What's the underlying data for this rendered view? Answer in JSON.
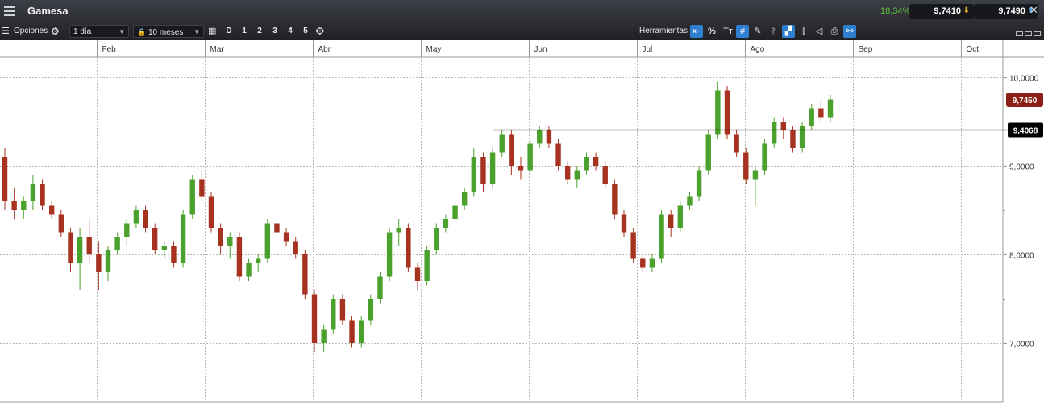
{
  "title_bar": {
    "title": "Gamesa",
    "change": "18,34%",
    "sell_quote": "9,7410",
    "buy_quote": "9,7490",
    "icons": [
      "menu-icon",
      "arrow-down-icon",
      "arrow-up-icon",
      "close-icon"
    ]
  },
  "toolbar": {
    "options_label": "Opciones",
    "interval": "1 día",
    "range": "10 meses",
    "quick_periods": [
      "D",
      "1",
      "2",
      "3",
      "4",
      "5"
    ],
    "tools_label": "Herramientas",
    "percent_label": "%",
    "text_tool_label": "Tт"
  },
  "colors": {
    "up": "#4aa12c",
    "down": "#a83220",
    "last_price_tag": "#8b1f14",
    "level_tag": "#000000",
    "accent": "#2f7fd0"
  },
  "chart_data": {
    "type": "candlestick",
    "instrument": "Gamesa",
    "x_axis": {
      "month_labels": [
        "Feb",
        "Mar",
        "Abr",
        "May",
        "Jun",
        "Jul",
        "Ago",
        "Sep",
        "Oct"
      ]
    },
    "y_axis": {
      "tick_labels": [
        "10,0000",
        "9,0000",
        "8,0000",
        "7,0000"
      ],
      "ticks": [
        10,
        9,
        8,
        7
      ],
      "range": [
        6.4,
        10.2
      ],
      "position": "right"
    },
    "grid": true,
    "last_price": 9.745,
    "last_price_label": "9,7450",
    "horizontal_level": 9.4068,
    "horizontal_level_label": "9,4068",
    "candles": [
      [
        9.1,
        9.2,
        8.5,
        8.6
      ],
      [
        8.6,
        8.75,
        8.4,
        8.5
      ],
      [
        8.5,
        8.65,
        8.4,
        8.6
      ],
      [
        8.6,
        8.9,
        8.5,
        8.8
      ],
      [
        8.8,
        8.85,
        8.5,
        8.55
      ],
      [
        8.55,
        8.6,
        8.4,
        8.45
      ],
      [
        8.45,
        8.5,
        8.2,
        8.25
      ],
      [
        8.25,
        8.3,
        7.8,
        7.9
      ],
      [
        7.9,
        8.3,
        7.6,
        8.2
      ],
      [
        8.2,
        8.4,
        7.9,
        8.0
      ],
      [
        8.0,
        8.15,
        7.6,
        7.8
      ],
      [
        7.8,
        8.1,
        7.7,
        8.05
      ],
      [
        8.05,
        8.25,
        8.0,
        8.2
      ],
      [
        8.2,
        8.4,
        8.1,
        8.35
      ],
      [
        8.35,
        8.55,
        8.3,
        8.5
      ],
      [
        8.5,
        8.55,
        8.25,
        8.3
      ],
      [
        8.3,
        8.35,
        8.0,
        8.05
      ],
      [
        8.05,
        8.15,
        7.95,
        8.1
      ],
      [
        8.1,
        8.15,
        7.85,
        7.9
      ],
      [
        7.9,
        8.5,
        7.85,
        8.45
      ],
      [
        8.45,
        8.9,
        8.4,
        8.85
      ],
      [
        8.85,
        8.95,
        8.6,
        8.65
      ],
      [
        8.65,
        8.7,
        8.25,
        8.3
      ],
      [
        8.3,
        8.35,
        8.0,
        8.1
      ],
      [
        8.1,
        8.25,
        7.95,
        8.2
      ],
      [
        8.2,
        8.25,
        7.7,
        7.75
      ],
      [
        7.75,
        7.95,
        7.7,
        7.9
      ],
      [
        7.9,
        8.0,
        7.8,
        7.95
      ],
      [
        7.95,
        8.4,
        7.9,
        8.35
      ],
      [
        8.35,
        8.4,
        8.2,
        8.25
      ],
      [
        8.25,
        8.3,
        8.1,
        8.15
      ],
      [
        8.15,
        8.2,
        7.95,
        8.0
      ],
      [
        8.0,
        8.05,
        7.5,
        7.55
      ],
      [
        7.55,
        7.6,
        6.9,
        7.0
      ],
      [
        7.0,
        7.2,
        6.9,
        7.15
      ],
      [
        7.15,
        7.55,
        7.1,
        7.5
      ],
      [
        7.5,
        7.55,
        7.2,
        7.25
      ],
      [
        7.25,
        7.3,
        6.95,
        7.0
      ],
      [
        7.0,
        7.3,
        6.95,
        7.25
      ],
      [
        7.25,
        7.55,
        7.2,
        7.5
      ],
      [
        7.5,
        7.8,
        7.45,
        7.75
      ],
      [
        7.75,
        8.3,
        7.7,
        8.25
      ],
      [
        8.25,
        8.4,
        8.1,
        8.3
      ],
      [
        8.3,
        8.35,
        7.8,
        7.85
      ],
      [
        7.85,
        7.9,
        7.6,
        7.7
      ],
      [
        7.7,
        8.1,
        7.65,
        8.05
      ],
      [
        8.05,
        8.35,
        8.0,
        8.3
      ],
      [
        8.3,
        8.45,
        8.25,
        8.4
      ],
      [
        8.4,
        8.6,
        8.35,
        8.55
      ],
      [
        8.55,
        8.75,
        8.5,
        8.7
      ],
      [
        8.7,
        9.2,
        8.65,
        9.1
      ],
      [
        9.1,
        9.15,
        8.7,
        8.8
      ],
      [
        8.8,
        9.2,
        8.75,
        9.15
      ],
      [
        9.15,
        9.4,
        9.1,
        9.35
      ],
      [
        9.35,
        9.4,
        8.9,
        9.0
      ],
      [
        9.0,
        9.1,
        8.85,
        8.95
      ],
      [
        8.95,
        9.3,
        8.9,
        9.25
      ],
      [
        9.25,
        9.45,
        9.2,
        9.4
      ],
      [
        9.4,
        9.45,
        9.2,
        9.25
      ],
      [
        9.25,
        9.3,
        8.95,
        9.0
      ],
      [
        9.0,
        9.05,
        8.8,
        8.85
      ],
      [
        8.85,
        9.0,
        8.75,
        8.95
      ],
      [
        8.95,
        9.15,
        8.9,
        9.1
      ],
      [
        9.1,
        9.15,
        8.95,
        9.0
      ],
      [
        9.0,
        9.05,
        8.75,
        8.8
      ],
      [
        8.8,
        8.85,
        8.4,
        8.45
      ],
      [
        8.45,
        8.5,
        8.2,
        8.25
      ],
      [
        8.25,
        8.3,
        7.9,
        7.95
      ],
      [
        7.95,
        8.0,
        7.8,
        7.85
      ],
      [
        7.85,
        8.0,
        7.8,
        7.95
      ],
      [
        7.95,
        8.5,
        7.9,
        8.45
      ],
      [
        8.45,
        8.5,
        8.2,
        8.3
      ],
      [
        8.3,
        8.6,
        8.25,
        8.55
      ],
      [
        8.55,
        8.7,
        8.5,
        8.65
      ],
      [
        8.65,
        9.0,
        8.6,
        8.95
      ],
      [
        8.95,
        9.4,
        8.9,
        9.35
      ],
      [
        9.35,
        9.95,
        9.3,
        9.85
      ],
      [
        9.85,
        9.9,
        9.3,
        9.35
      ],
      [
        9.35,
        9.4,
        9.1,
        9.15
      ],
      [
        9.15,
        9.2,
        8.8,
        8.85
      ],
      [
        8.85,
        9.0,
        8.55,
        8.95
      ],
      [
        8.95,
        9.3,
        8.9,
        9.25
      ],
      [
        9.25,
        9.55,
        9.2,
        9.5
      ],
      [
        9.5,
        9.55,
        9.3,
        9.4
      ],
      [
        9.4,
        9.45,
        9.15,
        9.2
      ],
      [
        9.2,
        9.5,
        9.15,
        9.45
      ],
      [
        9.45,
        9.7,
        9.4,
        9.65
      ],
      [
        9.65,
        9.75,
        9.5,
        9.55
      ],
      [
        9.55,
        9.8,
        9.5,
        9.75
      ]
    ]
  }
}
